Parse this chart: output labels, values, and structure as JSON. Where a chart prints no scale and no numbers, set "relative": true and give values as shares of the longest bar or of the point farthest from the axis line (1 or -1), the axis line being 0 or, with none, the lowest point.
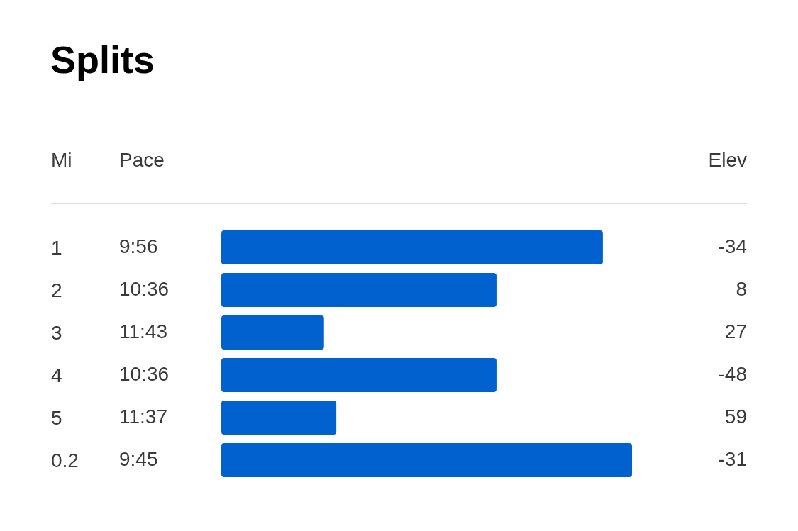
{
  "chart_data": {
    "type": "bar",
    "orientation": "horizontal",
    "relative": true,
    "title": "Splits",
    "ylabel": "Mi",
    "xlabel": "Pace",
    "y2label": "Elev",
    "categories": [
      "1",
      "2",
      "3",
      "4",
      "5",
      "0.2"
    ],
    "values": [
      0.929,
      0.67,
      0.25,
      0.67,
      0.28,
      1
    ],
    "color": "#0061cf",
    "annotations": [
      "9:56",
      "10:36",
      "11:43",
      "10:36",
      "11:37",
      "9:45",
      "-34",
      "8",
      "27",
      "-48",
      "59",
      "-31"
    ]
  }
}
